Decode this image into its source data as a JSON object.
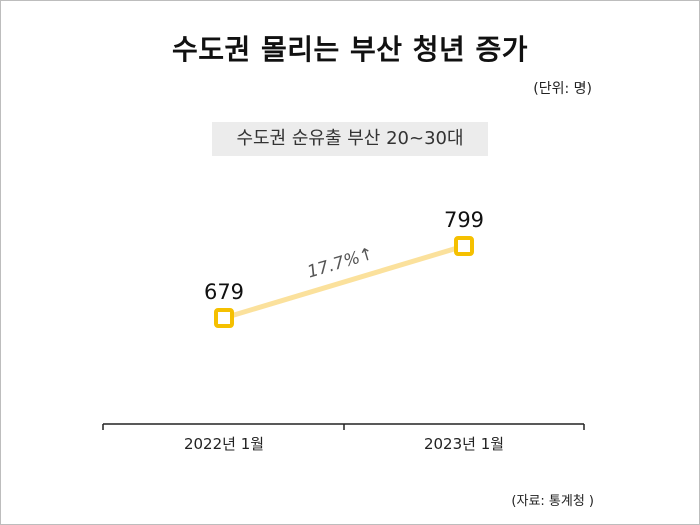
{
  "title": "수도권 몰리는 부산 청년 증가",
  "unit": "(단위: 명)",
  "source": "(자료: 통계청 )",
  "chart_data": {
    "type": "line",
    "subtitle": "수도권 순유출 부산 20~30대",
    "categories": [
      "2022년 1월",
      "2023년 1월"
    ],
    "values": [
      679,
      799
    ],
    "data_labels": [
      "679",
      "799"
    ],
    "annotation": "17.7%↑",
    "colors": {
      "line": "#fbe19c",
      "marker": "#f5c000"
    },
    "grid": false
  }
}
